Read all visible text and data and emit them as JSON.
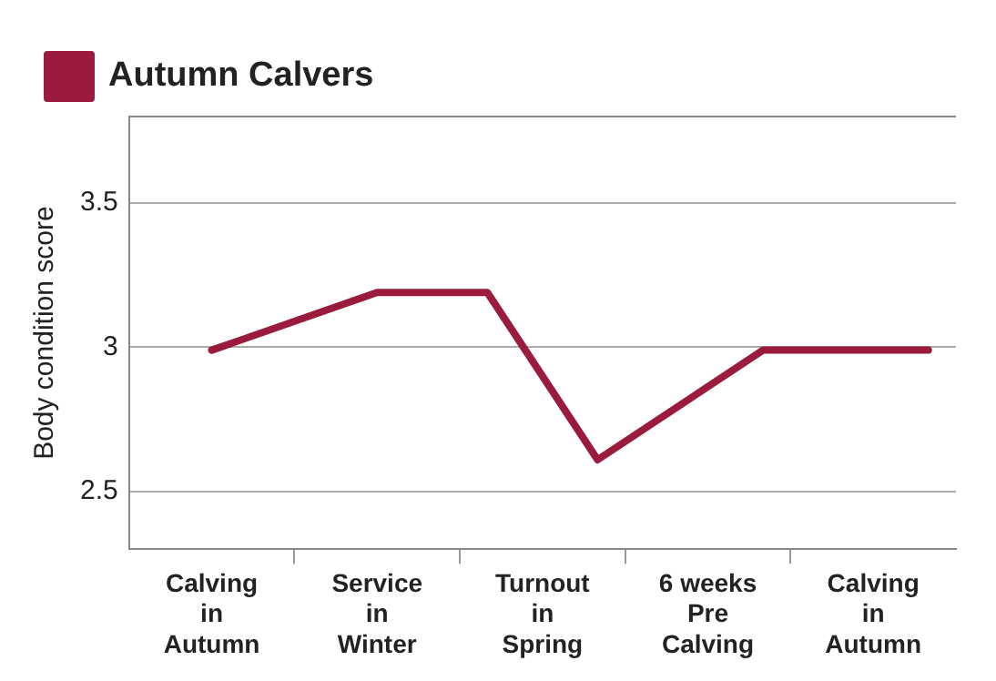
{
  "chart_data": {
    "type": "line",
    "ylabel": "Body condition score",
    "categories": [
      null,
      "Calving in Autumn",
      null,
      null,
      "Service in Winter",
      null,
      null,
      "Turnout in Spring",
      null,
      null,
      "6 weeks Pre Calving",
      null,
      null,
      "Calving in Autumn",
      null
    ],
    "series": [
      {
        "name": "Autumn Calvers",
        "color": "#9b1b3c",
        "values": [
          null,
          2.99,
          null,
          null,
          3.19,
          null,
          3.19,
          null,
          2.61,
          null,
          null,
          2.99,
          null,
          null,
          2.99
        ]
      }
    ],
    "ylim": [
      2.3,
      3.8
    ],
    "yticks": [
      2.5,
      3,
      3.5
    ],
    "grid": "y",
    "legend": "top left",
    "marker": "none",
    "line_style": "solid"
  }
}
